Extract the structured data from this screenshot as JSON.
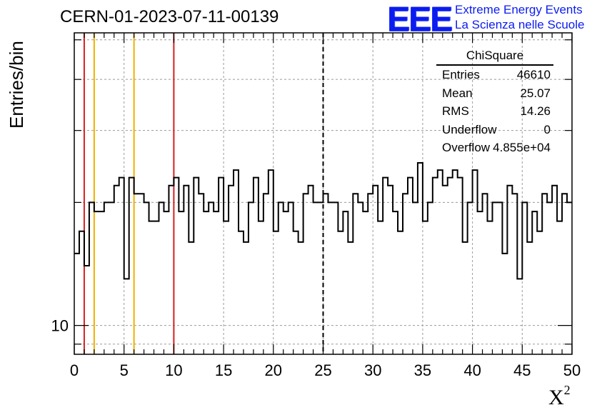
{
  "header": {
    "run_id": "CERN-01-2023-07-11-00139",
    "logo_text": "EEE",
    "logo_line1": "Extreme Energy Events",
    "logo_line2": "La Scienza nelle Scuole"
  },
  "stats_box": {
    "title": "ChiSquare",
    "rows": [
      {
        "key": "Entries",
        "value": "46610"
      },
      {
        "key": "Mean",
        "value": "25.07"
      },
      {
        "key": "RMS",
        "value": "14.26"
      },
      {
        "key": "Underflow",
        "value": "0"
      },
      {
        "key": "Overflow",
        "value": "4.855e+04"
      }
    ]
  },
  "chart_data": {
    "type": "histogram",
    "title": "CERN-01-2023-07-11-00139",
    "xlabel": "X²",
    "ylabel": "Entries/bin",
    "xlim": [
      0,
      50
    ],
    "ylog": true,
    "ylim": [
      8.5,
      52
    ],
    "xticks": [
      0,
      5,
      10,
      15,
      20,
      25,
      30,
      35,
      40,
      45,
      50
    ],
    "yticks_labeled": [
      10
    ],
    "grid": true,
    "bin_width": 0.5,
    "values": [
      15,
      17,
      14,
      20,
      19,
      19,
      20,
      20,
      22,
      23,
      13,
      23,
      21,
      21,
      20,
      18,
      18,
      20,
      19,
      22,
      23,
      19,
      22,
      16,
      23,
      21,
      19,
      20,
      19,
      23,
      18,
      22,
      24,
      17,
      16,
      20,
      23,
      18,
      21,
      24,
      17,
      20,
      19,
      20,
      17,
      16,
      21,
      22,
      20,
      20,
      21,
      20,
      20,
      17,
      19,
      16,
      21,
      20,
      19,
      21,
      22,
      18,
      23,
      22,
      19,
      17,
      21,
      23,
      20,
      25,
      18,
      20,
      23,
      24,
      22,
      23,
      24,
      23,
      16,
      20,
      24,
      19,
      21,
      18,
      20,
      20,
      15,
      22,
      21,
      13,
      20,
      16,
      19,
      17,
      21,
      20,
      22,
      18,
      21,
      20
    ],
    "color": "#000000",
    "vlines": [
      {
        "x": 1,
        "color": "#d62020"
      },
      {
        "x": 10,
        "color": "#d62020"
      },
      {
        "x": 2,
        "color": "#f0b000"
      },
      {
        "x": 6,
        "color": "#f0b000"
      },
      {
        "x": 25,
        "color": "#000000",
        "style": "dashed"
      }
    ]
  }
}
